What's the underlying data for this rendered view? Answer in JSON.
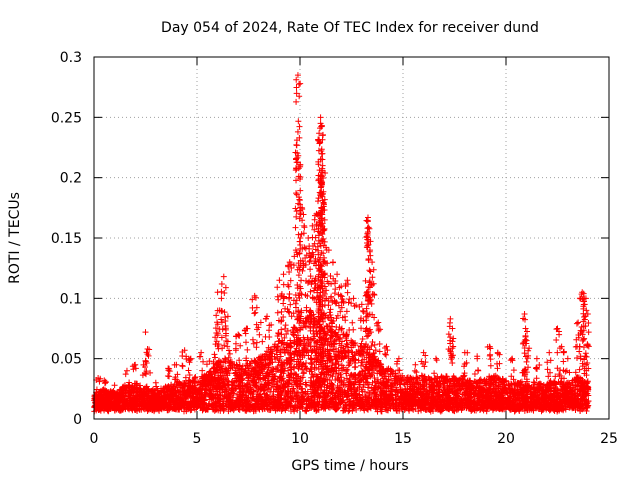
{
  "chart_data": {
    "type": "scatter",
    "title": "Day 054 of 2024, Rate Of TEC Index for receiver dund",
    "xlabel": "GPS time / hours",
    "ylabel": "ROTI / TECUs",
    "xlim": [
      0,
      25
    ],
    "ylim": [
      0,
      0.3
    ],
    "x_ticks": [
      0,
      5,
      10,
      15,
      20,
      25
    ],
    "y_ticks": [
      0,
      0.05,
      0.1,
      0.15,
      0.2,
      0.25,
      0.3
    ],
    "x_tick_labels": [
      "0",
      "5",
      "10",
      "15",
      "20",
      "25"
    ],
    "y_tick_labels": [
      "0",
      "0.05",
      "0.1",
      "0.15",
      "0.2",
      "0.25",
      "0.3"
    ],
    "grid": true,
    "marker": "+",
    "color": "#ff0000",
    "points": [
      [
        0.2,
        0.034
      ],
      [
        0.5,
        0.032
      ],
      [
        1.0,
        0.028
      ],
      [
        1.6,
        0.04
      ],
      [
        2.0,
        0.045
      ],
      [
        2.5,
        0.072
      ],
      [
        2.6,
        0.058
      ],
      [
        3.0,
        0.03
      ],
      [
        3.6,
        0.042
      ],
      [
        4.0,
        0.045
      ],
      [
        4.4,
        0.057
      ],
      [
        4.7,
        0.05
      ],
      [
        5.2,
        0.055
      ],
      [
        5.6,
        0.048
      ],
      [
        5.9,
        0.062
      ],
      [
        6.0,
        0.105
      ],
      [
        6.1,
        0.09
      ],
      [
        6.3,
        0.118
      ],
      [
        6.5,
        0.085
      ],
      [
        7.0,
        0.07
      ],
      [
        7.4,
        0.075
      ],
      [
        7.8,
        0.102
      ],
      [
        8.1,
        0.08
      ],
      [
        8.4,
        0.085
      ],
      [
        8.6,
        0.078
      ],
      [
        9.0,
        0.115
      ],
      [
        9.2,
        0.12
      ],
      [
        9.5,
        0.13
      ],
      [
        9.8,
        0.14
      ],
      [
        9.9,
        0.285
      ],
      [
        9.9,
        0.238
      ],
      [
        10.1,
        0.175
      ],
      [
        10.2,
        0.16
      ],
      [
        10.4,
        0.15
      ],
      [
        10.6,
        0.16
      ],
      [
        10.8,
        0.17
      ],
      [
        10.9,
        0.183
      ],
      [
        11.0,
        0.25
      ],
      [
        11.0,
        0.245
      ],
      [
        11.1,
        0.235
      ],
      [
        11.0,
        0.215
      ],
      [
        11.1,
        0.21
      ],
      [
        11.2,
        0.165
      ],
      [
        11.4,
        0.14
      ],
      [
        11.6,
        0.13
      ],
      [
        11.8,
        0.12
      ],
      [
        12.0,
        0.11
      ],
      [
        12.3,
        0.115
      ],
      [
        12.6,
        0.1
      ],
      [
        13.0,
        0.095
      ],
      [
        13.3,
        0.167
      ],
      [
        13.3,
        0.155
      ],
      [
        13.4,
        0.14
      ],
      [
        13.5,
        0.13
      ],
      [
        13.8,
        0.08
      ],
      [
        14.2,
        0.06
      ],
      [
        14.8,
        0.05
      ],
      [
        15.6,
        0.045
      ],
      [
        16.0,
        0.055
      ],
      [
        16.6,
        0.05
      ],
      [
        17.3,
        0.083
      ],
      [
        17.4,
        0.075
      ],
      [
        18.0,
        0.055
      ],
      [
        18.6,
        0.052
      ],
      [
        19.2,
        0.06
      ],
      [
        19.6,
        0.055
      ],
      [
        20.3,
        0.05
      ],
      [
        20.9,
        0.087
      ],
      [
        20.95,
        0.075
      ],
      [
        21.0,
        0.065
      ],
      [
        21.5,
        0.05
      ],
      [
        22.1,
        0.055
      ],
      [
        22.5,
        0.075
      ],
      [
        22.7,
        0.06
      ],
      [
        23.0,
        0.05
      ],
      [
        23.5,
        0.08
      ],
      [
        23.7,
        0.105
      ],
      [
        23.8,
        0.1
      ],
      [
        23.9,
        0.09
      ],
      [
        23.95,
        0.062
      ]
    ],
    "envelope": [
      [
        0.0,
        0.022
      ],
      [
        0.5,
        0.025
      ],
      [
        1.0,
        0.022
      ],
      [
        1.5,
        0.028
      ],
      [
        2.0,
        0.03
      ],
      [
        2.5,
        0.026
      ],
      [
        3.0,
        0.024
      ],
      [
        3.5,
        0.027
      ],
      [
        4.0,
        0.03
      ],
      [
        4.5,
        0.032
      ],
      [
        5.0,
        0.036
      ],
      [
        5.5,
        0.038
      ],
      [
        6.0,
        0.048
      ],
      [
        6.5,
        0.05
      ],
      [
        7.0,
        0.045
      ],
      [
        7.5,
        0.047
      ],
      [
        8.0,
        0.052
      ],
      [
        8.5,
        0.058
      ],
      [
        9.0,
        0.065
      ],
      [
        9.5,
        0.075
      ],
      [
        10.0,
        0.085
      ],
      [
        10.5,
        0.09
      ],
      [
        11.0,
        0.095
      ],
      [
        11.5,
        0.085
      ],
      [
        12.0,
        0.075
      ],
      [
        12.5,
        0.065
      ],
      [
        13.0,
        0.062
      ],
      [
        13.5,
        0.058
      ],
      [
        14.0,
        0.045
      ],
      [
        14.5,
        0.04
      ],
      [
        15.0,
        0.036
      ],
      [
        15.5,
        0.034
      ],
      [
        16.0,
        0.036
      ],
      [
        16.5,
        0.034
      ],
      [
        17.0,
        0.036
      ],
      [
        17.5,
        0.034
      ],
      [
        18.0,
        0.034
      ],
      [
        18.5,
        0.032
      ],
      [
        19.0,
        0.034
      ],
      [
        19.5,
        0.036
      ],
      [
        20.0,
        0.032
      ],
      [
        20.5,
        0.03
      ],
      [
        21.0,
        0.032
      ],
      [
        21.5,
        0.03
      ],
      [
        22.0,
        0.03
      ],
      [
        22.5,
        0.032
      ],
      [
        23.0,
        0.03
      ],
      [
        23.5,
        0.036
      ],
      [
        24.0,
        0.03
      ]
    ]
  }
}
